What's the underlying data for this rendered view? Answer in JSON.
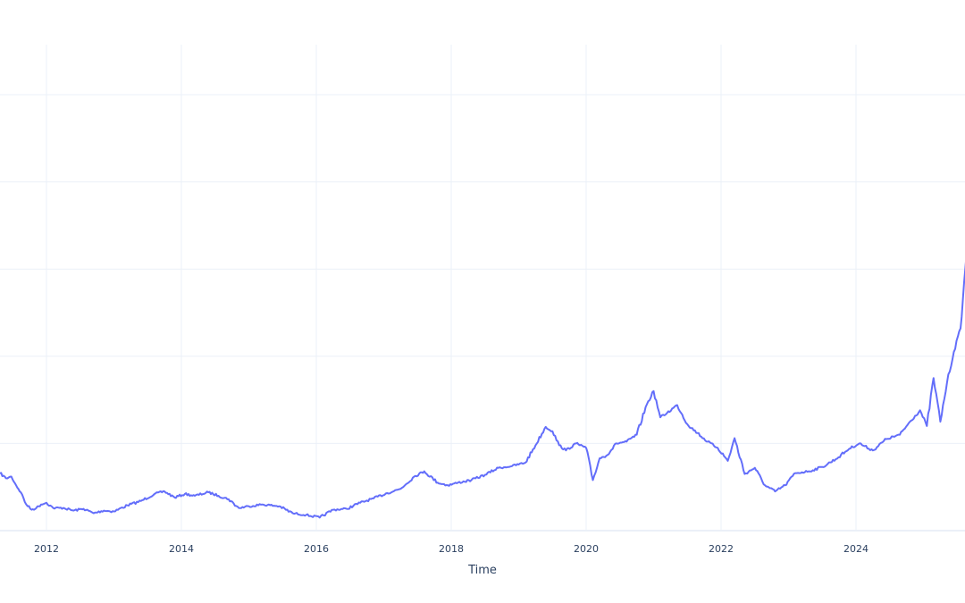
{
  "chart_data": {
    "type": "line",
    "title": "",
    "xlabel": "Time",
    "ylabel": "",
    "line_color": "#636efa",
    "grid": true,
    "legend": "none",
    "y_units_note": "y tick labels not visible; values expressed in gridline units (gridlines at 1,2,3,4,5 above the baseline 0)",
    "xlim": [
      2011.31,
      2025.67
    ],
    "ylim": [
      0,
      5.57
    ],
    "x_ticks": [
      "2012",
      "2014",
      "2016",
      "2018",
      "2020",
      "2022",
      "2024"
    ],
    "x_tick_values": [
      2012,
      2014,
      2016,
      2018,
      2020,
      2022,
      2024
    ],
    "y_gridlines": [
      1,
      2,
      3,
      4,
      5
    ],
    "x": [
      2011.31,
      2011.4,
      2011.48,
      2011.55,
      2011.62,
      2011.7,
      2011.78,
      2011.85,
      2011.92,
      2012.0,
      2012.1,
      2012.25,
      2012.4,
      2012.55,
      2012.7,
      2012.85,
      2013.0,
      2013.2,
      2013.4,
      2013.6,
      2013.75,
      2013.9,
      2014.05,
      2014.2,
      2014.4,
      2014.55,
      2014.7,
      2014.85,
      2015.0,
      2015.2,
      2015.45,
      2015.65,
      2015.85,
      2016.05,
      2016.25,
      2016.45,
      2016.65,
      2016.85,
      2017.05,
      2017.25,
      2017.45,
      2017.6,
      2017.8,
      2017.95,
      2018.1,
      2018.3,
      2018.5,
      2018.7,
      2018.9,
      2019.1,
      2019.25,
      2019.4,
      2019.5,
      2019.6,
      2019.7,
      2019.85,
      2020.0,
      2020.1,
      2020.2,
      2020.3,
      2020.45,
      2020.6,
      2020.75,
      2020.9,
      2021.0,
      2021.1,
      2021.2,
      2021.35,
      2021.5,
      2021.65,
      2021.8,
      2021.95,
      2022.1,
      2022.2,
      2022.35,
      2022.5,
      2022.65,
      2022.8,
      2022.95,
      2023.1,
      2023.3,
      2023.5,
      2023.7,
      2023.9,
      2024.05,
      2024.25,
      2024.45,
      2024.65,
      2024.8,
      2024.95,
      2025.05,
      2025.15,
      2025.25,
      2025.35,
      2025.45,
      2025.55,
      2025.62,
      2025.67
    ],
    "y": [
      0.66,
      0.6,
      0.62,
      0.52,
      0.44,
      0.3,
      0.24,
      0.26,
      0.3,
      0.32,
      0.26,
      0.26,
      0.23,
      0.25,
      0.2,
      0.23,
      0.22,
      0.29,
      0.34,
      0.42,
      0.45,
      0.38,
      0.42,
      0.4,
      0.44,
      0.4,
      0.36,
      0.26,
      0.28,
      0.3,
      0.28,
      0.2,
      0.18,
      0.15,
      0.24,
      0.25,
      0.32,
      0.37,
      0.43,
      0.48,
      0.62,
      0.68,
      0.55,
      0.52,
      0.55,
      0.58,
      0.64,
      0.72,
      0.74,
      0.78,
      0.98,
      1.19,
      1.14,
      0.98,
      0.92,
      1.0,
      0.95,
      0.58,
      0.83,
      0.86,
      1.0,
      1.02,
      1.1,
      1.45,
      1.6,
      1.3,
      1.35,
      1.44,
      1.22,
      1.12,
      1.02,
      0.95,
      0.8,
      1.06,
      0.65,
      0.72,
      0.52,
      0.45,
      0.52,
      0.66,
      0.68,
      0.73,
      0.82,
      0.94,
      1.0,
      0.92,
      1.05,
      1.1,
      1.25,
      1.38,
      1.2,
      1.75,
      1.25,
      1.7,
      2.05,
      2.32,
      3.0,
      3.47
    ]
  }
}
